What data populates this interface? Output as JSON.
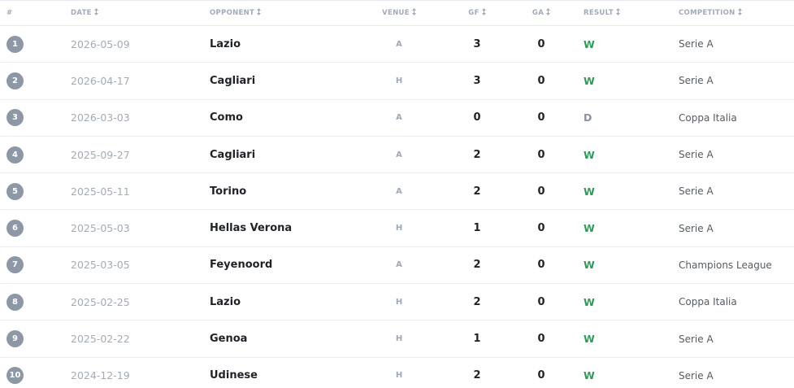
{
  "table": {
    "headers": [
      "#",
      "DATE",
      "OPPONENT",
      "VENUE",
      "GF",
      "GA",
      "RESULT",
      "COMPETITION"
    ],
    "rows": [
      [
        1,
        "2026-05-09",
        "Lazio",
        "A",
        3,
        0,
        "W",
        "Serie A"
      ],
      [
        2,
        "2026-04-17",
        "Cagliari",
        "H",
        3,
        0,
        "W",
        "Serie A"
      ],
      [
        3,
        "2026-03-03",
        "Como",
        "A",
        0,
        0,
        "D",
        "Coppa Italia"
      ],
      [
        4,
        "2025-09-27",
        "Cagliari",
        "A",
        2,
        0,
        "W",
        "Serie A"
      ],
      [
        5,
        "2025-05-11",
        "Torino",
        "A",
        2,
        0,
        "W",
        "Serie A"
      ],
      [
        6,
        "2025-05-03",
        "Hellas Verona",
        "H",
        1,
        0,
        "W",
        "Serie A"
      ],
      [
        7,
        "2025-03-05",
        "Feyenoord",
        "A",
        2,
        0,
        "W",
        "Champions League"
      ],
      [
        8,
        "2025-02-25",
        "Lazio",
        "H",
        2,
        0,
        "W",
        "Coppa Italia"
      ],
      [
        9,
        "2025-02-22",
        "Genoa",
        "H",
        1,
        0,
        "W",
        "Serie A"
      ],
      [
        10,
        "2024-12-19",
        "Udinese",
        "H",
        2,
        0,
        "W",
        "Serie A"
      ]
    ]
  }
}
